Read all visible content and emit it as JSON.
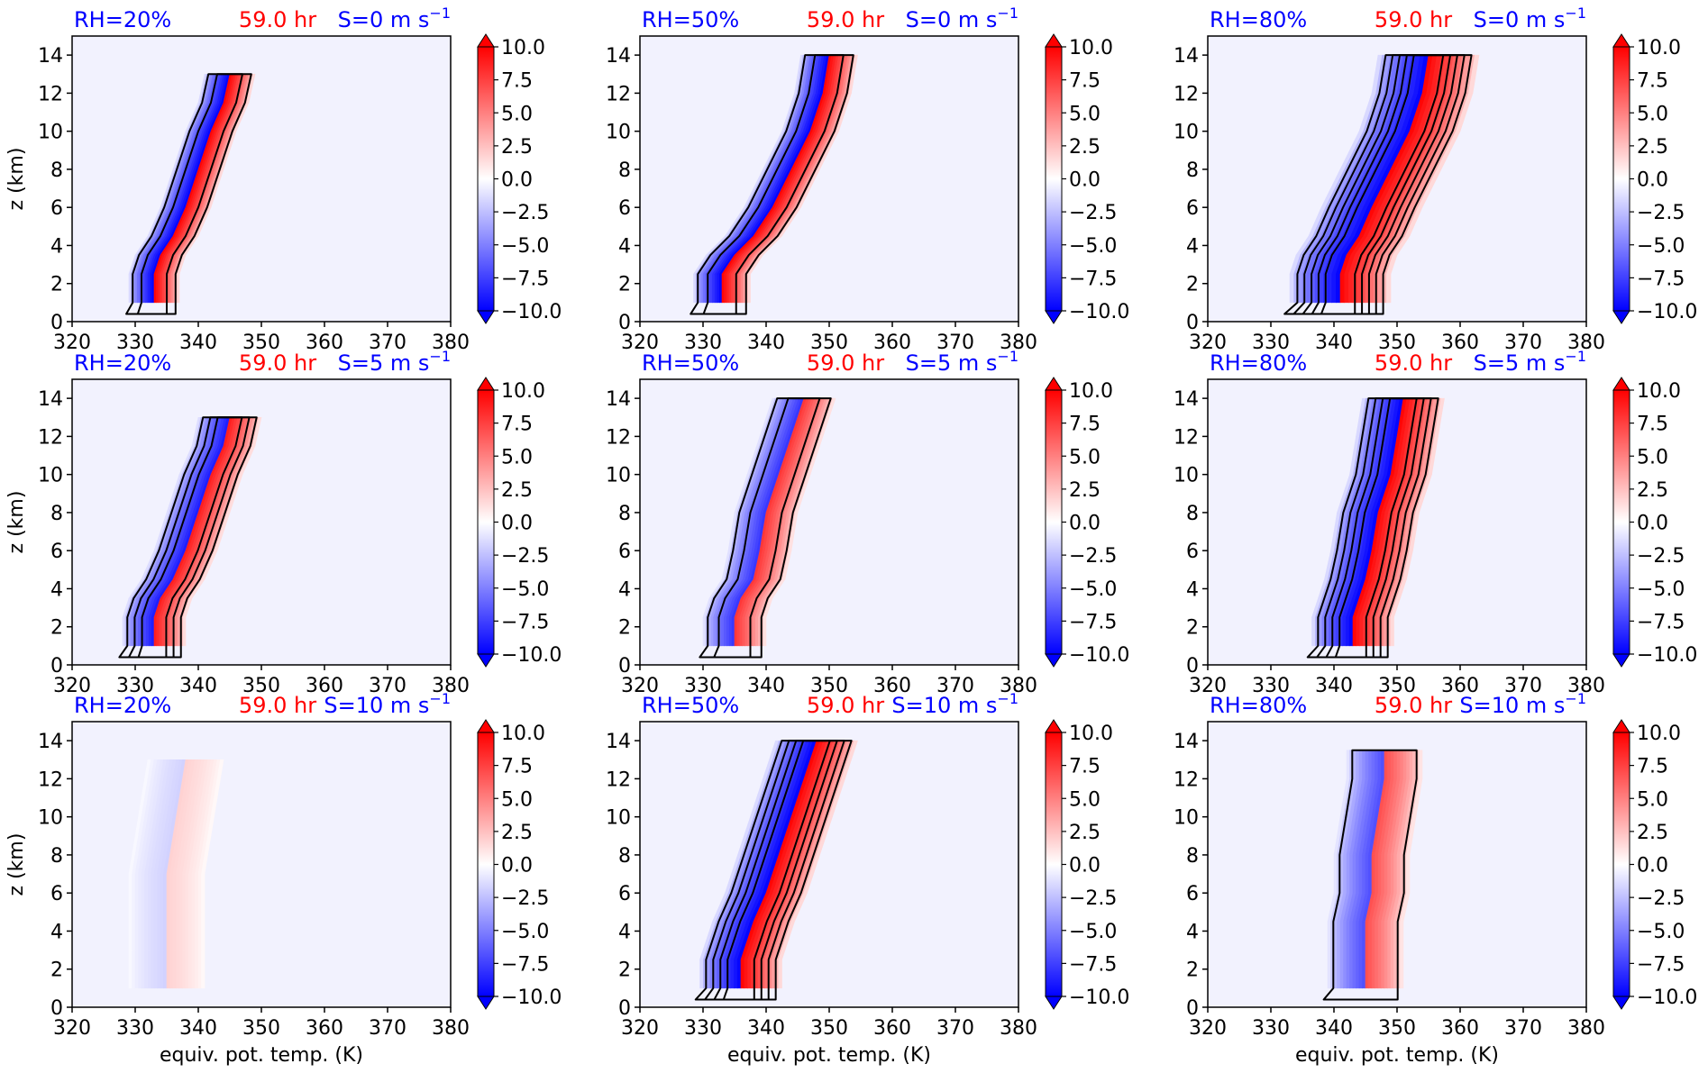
{
  "chart_data": {
    "type": "filled-contour",
    "layout": {
      "rows": 3,
      "cols": 3
    },
    "xlabel": "equiv. pot. temp. (K)",
    "ylabel": "z (km)",
    "xlim": [
      320,
      380
    ],
    "ylim": [
      0,
      15
    ],
    "xticks": [
      320,
      330,
      340,
      350,
      360,
      370,
      380
    ],
    "yticks": [
      0,
      2,
      4,
      6,
      8,
      10,
      12,
      14
    ],
    "colorbar": {
      "ticks": [
        "10.0",
        "7.5",
        "5.0",
        "2.5",
        "0.0",
        "−2.5",
        "−5.0",
        "−7.5",
        "−10.0"
      ],
      "range": [
        -10,
        10
      ],
      "colormap": "bwr",
      "extend": "both"
    },
    "colors": {
      "rh": "#0000ff",
      "time": "#ff0000",
      "shear": "#0000ff",
      "background": "#f2f2fe"
    },
    "time_label": "59.0 hr",
    "panels": [
      {
        "rh": "RH=20%",
        "shear": "S=0 m s",
        "shear_exp": "−1",
        "spine": [
          [
            333,
            1
          ],
          [
            333,
            2.5
          ],
          [
            334,
            3.5
          ],
          [
            336,
            4.5
          ],
          [
            338,
            6
          ],
          [
            340,
            8
          ],
          [
            342,
            10
          ],
          [
            344,
            11.5
          ],
          [
            345,
            13
          ]
        ],
        "width": 8,
        "amp": 10,
        "contours": 2
      },
      {
        "rh": "RH=50%",
        "shear": "S=0 m s",
        "shear_exp": "−1",
        "spine": [
          [
            333,
            1
          ],
          [
            333,
            2.5
          ],
          [
            335,
            3.5
          ],
          [
            338,
            4.5
          ],
          [
            341,
            6
          ],
          [
            344,
            8
          ],
          [
            347,
            10
          ],
          [
            349,
            12
          ],
          [
            350,
            14
          ]
        ],
        "width": 9,
        "amp": 10,
        "contours": 2
      },
      {
        "rh": "RH=80%",
        "shear": "S=0 m s",
        "shear_exp": "−1",
        "spine": [
          [
            341,
            1
          ],
          [
            341,
            2.5
          ],
          [
            342,
            3.5
          ],
          [
            344,
            4.5
          ],
          [
            346,
            6
          ],
          [
            349,
            8
          ],
          [
            352,
            10
          ],
          [
            354,
            12
          ],
          [
            355,
            14
          ]
        ],
        "width": 16,
        "amp": 10,
        "contours": 5
      },
      {
        "rh": "RH=20%",
        "shear": "S=5 m s",
        "shear_exp": "−1",
        "spine": [
          [
            333,
            1
          ],
          [
            333,
            2.5
          ],
          [
            334,
            3.5
          ],
          [
            336,
            4.5
          ],
          [
            338,
            6
          ],
          [
            340,
            8
          ],
          [
            342,
            10
          ],
          [
            344,
            11.5
          ],
          [
            345,
            13
          ]
        ],
        "width": 10,
        "amp": 9,
        "contours": 3
      },
      {
        "rh": "RH=50%",
        "shear": "S=5 m s",
        "shear_exp": "−1",
        "spine": [
          [
            335,
            1
          ],
          [
            335,
            2.5
          ],
          [
            336,
            3.5
          ],
          [
            338,
            4.5
          ],
          [
            339,
            6
          ],
          [
            340,
            8
          ],
          [
            342,
            10
          ],
          [
            344,
            12
          ],
          [
            346,
            14
          ]
        ],
        "width": 10,
        "amp": 8,
        "contours": 2
      },
      {
        "rh": "RH=80%",
        "shear": "S=5 m s",
        "shear_exp": "−1",
        "spine": [
          [
            343,
            1
          ],
          [
            343,
            2.5
          ],
          [
            344,
            3.5
          ],
          [
            345,
            4.5
          ],
          [
            346,
            6
          ],
          [
            347,
            8
          ],
          [
            349,
            10
          ],
          [
            350,
            12
          ],
          [
            351,
            14
          ]
        ],
        "width": 13,
        "amp": 10,
        "contours": 4
      },
      {
        "rh": "RH=20%",
        "shear": "S=10 m s",
        "shear_exp": "−1",
        "spine": [
          [
            335,
            1
          ],
          [
            335,
            3
          ],
          [
            335,
            5
          ],
          [
            335,
            7
          ],
          [
            336,
            9
          ],
          [
            337,
            11
          ],
          [
            338,
            13
          ]
        ],
        "width": 12,
        "amp": 1.8,
        "contours": 0
      },
      {
        "rh": "RH=50%",
        "shear": "S=10 m s",
        "shear_exp": "−1",
        "spine": [
          [
            336,
            1
          ],
          [
            336,
            2.5
          ],
          [
            337,
            3.5
          ],
          [
            338,
            4.5
          ],
          [
            340,
            6
          ],
          [
            342,
            8
          ],
          [
            344,
            10
          ],
          [
            346,
            12
          ],
          [
            348,
            14
          ]
        ],
        "width": 13,
        "amp": 10,
        "contours": 4
      },
      {
        "rh": "RH=80%",
        "shear": "S=10 m s",
        "shear_exp": "−1",
        "spine": [
          [
            345,
            1
          ],
          [
            345,
            2.5
          ],
          [
            345,
            3.5
          ],
          [
            345,
            4.5
          ],
          [
            346,
            6
          ],
          [
            346,
            8
          ],
          [
            347,
            10
          ],
          [
            348,
            12
          ],
          [
            348,
            13.5
          ]
        ],
        "width": 12,
        "amp": 7,
        "contours": 1
      }
    ]
  }
}
